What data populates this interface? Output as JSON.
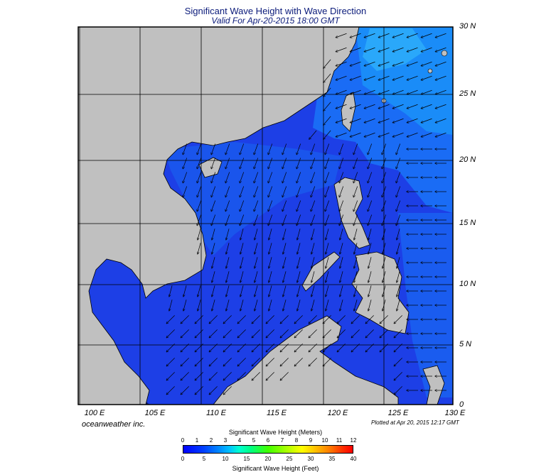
{
  "title": "Significant Wave Height with Wave Direction",
  "subtitle": "Valid For Apr-20-2015 18:00 GMT",
  "credit": "oceanweather inc.",
  "plotted_at": "Plotted at Apr 20, 2015 12:17 GMT",
  "map": {
    "lat_labels": [
      "30 N",
      "25 N",
      "20 N",
      "15 N",
      "10 N",
      "5 N",
      "0"
    ],
    "lon_labels": [
      "100 E",
      "105 E",
      "110 E",
      "115 E",
      "120 E",
      "125 E",
      "130 E"
    ],
    "lat_range": [
      0,
      30
    ],
    "lon_range": [
      100,
      130
    ],
    "grid_step_deg": 5,
    "land_color": "#c0c0c0",
    "ocean_base_color": "#1d3fe6"
  },
  "colorbar": {
    "meters_title": "Significant Wave Height (Meters)",
    "meters_ticks": [
      "0",
      "1",
      "2",
      "3",
      "4",
      "5",
      "6",
      "7",
      "8",
      "9",
      "10",
      "11",
      "12"
    ],
    "feet_title": "Significant Wave Height (Feet)",
    "feet_ticks": [
      "0",
      "5",
      "10",
      "15",
      "20",
      "25",
      "30",
      "35",
      "40"
    ]
  }
}
